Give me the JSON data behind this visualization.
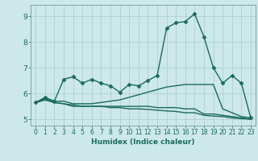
{
  "xlabel": "Humidex (Indice chaleur)",
  "bg_color": "#cce8e8",
  "grid_color": "#b0cfcf",
  "line_color": "#1a6b5a",
  "marker_color": "#1a6b5a",
  "xlim": [
    -0.5,
    23.5
  ],
  "ylim": [
    4.75,
    9.45
  ],
  "yticks": [
    5,
    6,
    7,
    8,
    9
  ],
  "xticks": [
    0,
    1,
    2,
    3,
    4,
    5,
    6,
    7,
    8,
    9,
    10,
    11,
    12,
    13,
    14,
    15,
    16,
    17,
    18,
    19,
    20,
    21,
    22,
    23
  ],
  "series": [
    [
      5.65,
      5.85,
      5.7,
      6.55,
      6.65,
      6.4,
      6.55,
      6.4,
      6.3,
      6.05,
      6.35,
      6.3,
      6.5,
      6.7,
      8.55,
      8.75,
      8.8,
      9.1,
      8.2,
      7.0,
      6.4,
      6.7,
      6.4,
      5.05
    ],
    [
      5.65,
      5.8,
      5.7,
      5.7,
      5.6,
      5.6,
      5.6,
      5.65,
      5.7,
      5.75,
      5.85,
      5.95,
      6.05,
      6.15,
      6.25,
      6.3,
      6.35,
      6.35,
      6.35,
      6.35,
      5.4,
      5.25,
      5.1,
      5.05
    ],
    [
      5.65,
      5.75,
      5.65,
      5.6,
      5.55,
      5.5,
      5.5,
      5.5,
      5.5,
      5.5,
      5.5,
      5.5,
      5.5,
      5.45,
      5.45,
      5.45,
      5.4,
      5.4,
      5.2,
      5.2,
      5.15,
      5.1,
      5.05,
      5.0
    ],
    [
      5.65,
      5.75,
      5.65,
      5.6,
      5.5,
      5.5,
      5.5,
      5.5,
      5.45,
      5.45,
      5.4,
      5.4,
      5.38,
      5.35,
      5.32,
      5.3,
      5.25,
      5.25,
      5.15,
      5.12,
      5.1,
      5.05,
      5.02,
      5.0
    ]
  ],
  "marker_size": 2.5,
  "line_width": 1.0
}
